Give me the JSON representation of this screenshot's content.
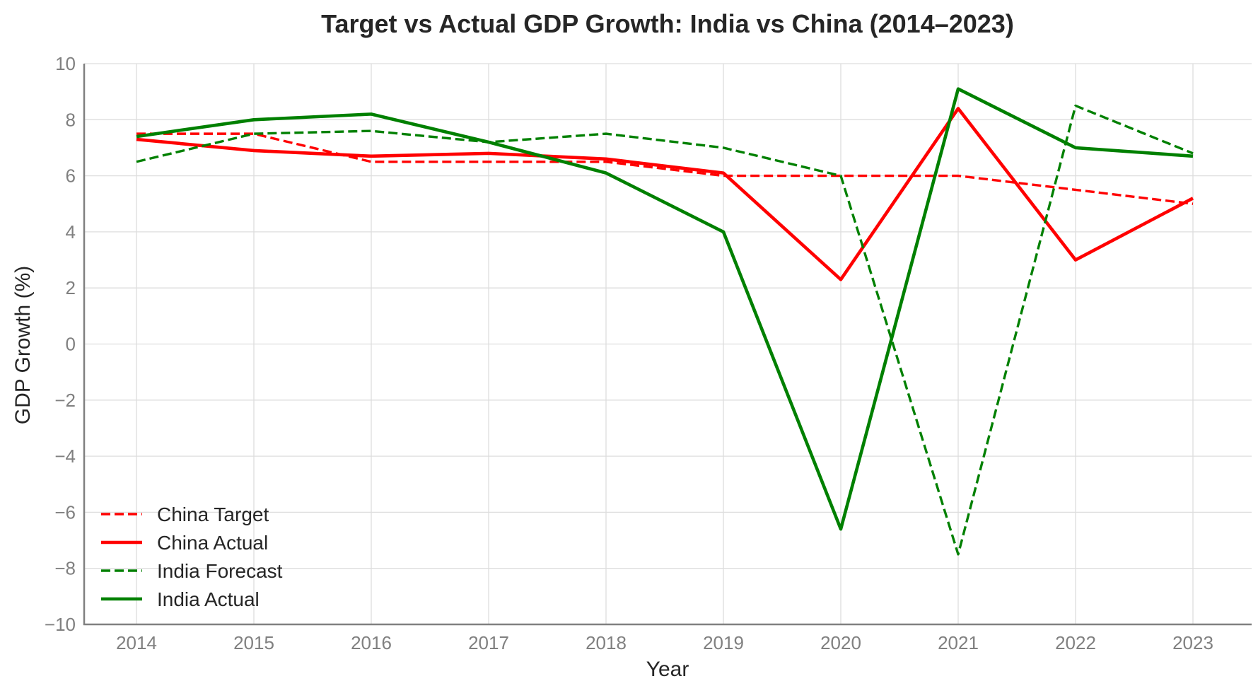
{
  "chart_data": {
    "type": "line",
    "title": "Target vs Actual GDP Growth: India vs China (2014–2023)",
    "xlabel": "Year",
    "ylabel": "GDP Growth (%)",
    "x": [
      2014,
      2015,
      2016,
      2017,
      2018,
      2019,
      2020,
      2021,
      2022,
      2023
    ],
    "ylim": [
      -10,
      10
    ],
    "yticks": [
      10,
      8,
      6,
      4,
      2,
      0,
      -2,
      -4,
      -6,
      -8,
      -10
    ],
    "ytick_labels": [
      "10",
      "8",
      "6",
      "4",
      "2",
      "0",
      "−2",
      "−4",
      "−6",
      "−8",
      "−10"
    ],
    "grid": true,
    "legend_position": "lower-left",
    "series": [
      {
        "name": "China Target",
        "color": "#ff0000",
        "style": "dashed",
        "values": [
          7.5,
          7.5,
          6.5,
          6.5,
          6.5,
          6.0,
          6.0,
          6.0,
          5.5,
          5.0
        ]
      },
      {
        "name": "China Actual",
        "color": "#ff0000",
        "style": "solid",
        "values": [
          7.3,
          6.9,
          6.7,
          6.8,
          6.6,
          6.1,
          2.3,
          8.4,
          3.0,
          5.2
        ]
      },
      {
        "name": "India Forecast",
        "color": "#008000",
        "style": "dashed",
        "values": [
          6.5,
          7.5,
          7.6,
          7.2,
          7.5,
          7.0,
          6.0,
          -7.5,
          8.5,
          6.8
        ]
      },
      {
        "name": "India Actual",
        "color": "#008000",
        "style": "solid",
        "values": [
          7.4,
          8.0,
          8.2,
          7.2,
          6.1,
          4.0,
          -6.6,
          9.1,
          7.0,
          6.7
        ]
      }
    ]
  }
}
